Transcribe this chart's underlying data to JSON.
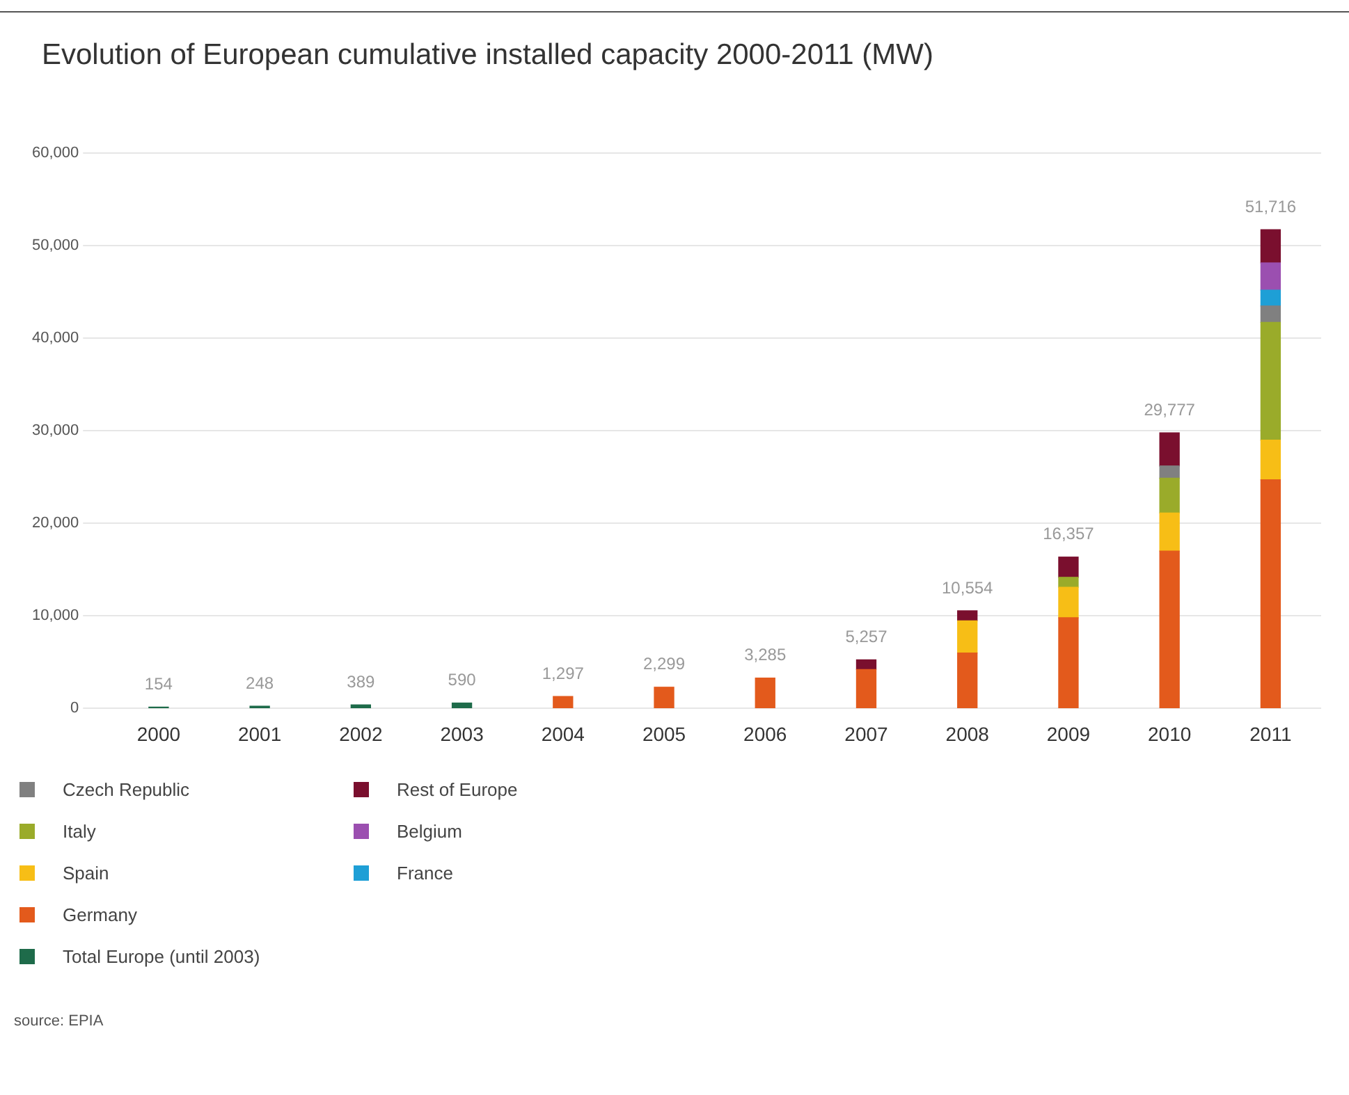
{
  "chart_data": {
    "type": "bar",
    "title": "Evolution of European cumulative installed capacity 2000-2011 (MW)",
    "categories": [
      "2000",
      "2001",
      "2002",
      "2003",
      "2004",
      "2005",
      "2006",
      "2007",
      "2008",
      "2009",
      "2010",
      "2011"
    ],
    "stacked": true,
    "series": [
      {
        "name": "Total Europe (until 2003)",
        "color": "#1e6b4a",
        "values": [
          154,
          248,
          389,
          590,
          null,
          null,
          null,
          null,
          null,
          null,
          null,
          null
        ]
      },
      {
        "name": "Germany",
        "color": "#e35a1c",
        "values": [
          null,
          null,
          null,
          null,
          1297,
          2299,
          3285,
          4200,
          6000,
          9800,
          17000,
          24700
        ]
      },
      {
        "name": "Spain",
        "color": "#f7be16",
        "values": [
          null,
          null,
          null,
          null,
          null,
          null,
          null,
          null,
          3470,
          3300,
          4120,
          4280
        ]
      },
      {
        "name": "Italy",
        "color": "#9aab2a",
        "values": [
          null,
          null,
          null,
          null,
          null,
          null,
          null,
          null,
          null,
          1070,
          3750,
          12730
        ]
      },
      {
        "name": "Czech Republic",
        "color": "#808080",
        "values": [
          null,
          null,
          null,
          null,
          null,
          null,
          null,
          null,
          null,
          null,
          1330,
          1770
        ]
      },
      {
        "name": "France",
        "color": "#1e9fd6",
        "values": [
          null,
          null,
          null,
          null,
          null,
          null,
          null,
          null,
          null,
          null,
          null,
          1710
        ]
      },
      {
        "name": "Belgium",
        "color": "#9b4fb0",
        "values": [
          null,
          null,
          null,
          null,
          null,
          null,
          null,
          null,
          null,
          null,
          null,
          2940
        ]
      },
      {
        "name": "Rest of Europe",
        "color": "#7a0f2e",
        "values": [
          null,
          null,
          null,
          null,
          null,
          null,
          null,
          1057,
          1084,
          2187,
          3577,
          3586
        ]
      }
    ],
    "totals": [
      "154",
      "248",
      "389",
      "590",
      "1,297",
      "2,299",
      "3,285",
      "5,257",
      "10,554",
      "16,357",
      "29,777",
      "51,716"
    ],
    "ylim": [
      0,
      60000
    ],
    "yticks": [
      {
        "value": 0,
        "label": "0"
      },
      {
        "value": 10000,
        "label": "10,000"
      },
      {
        "value": 20000,
        "label": "20,000"
      },
      {
        "value": 30000,
        "label": "30,000"
      },
      {
        "value": 40000,
        "label": "40,000"
      },
      {
        "value": 50000,
        "label": "50,000"
      },
      {
        "value": 60000,
        "label": "60,000"
      }
    ],
    "grid": "y",
    "legend": "bottom left",
    "annotations": [
      "source: EPIA"
    ]
  }
}
